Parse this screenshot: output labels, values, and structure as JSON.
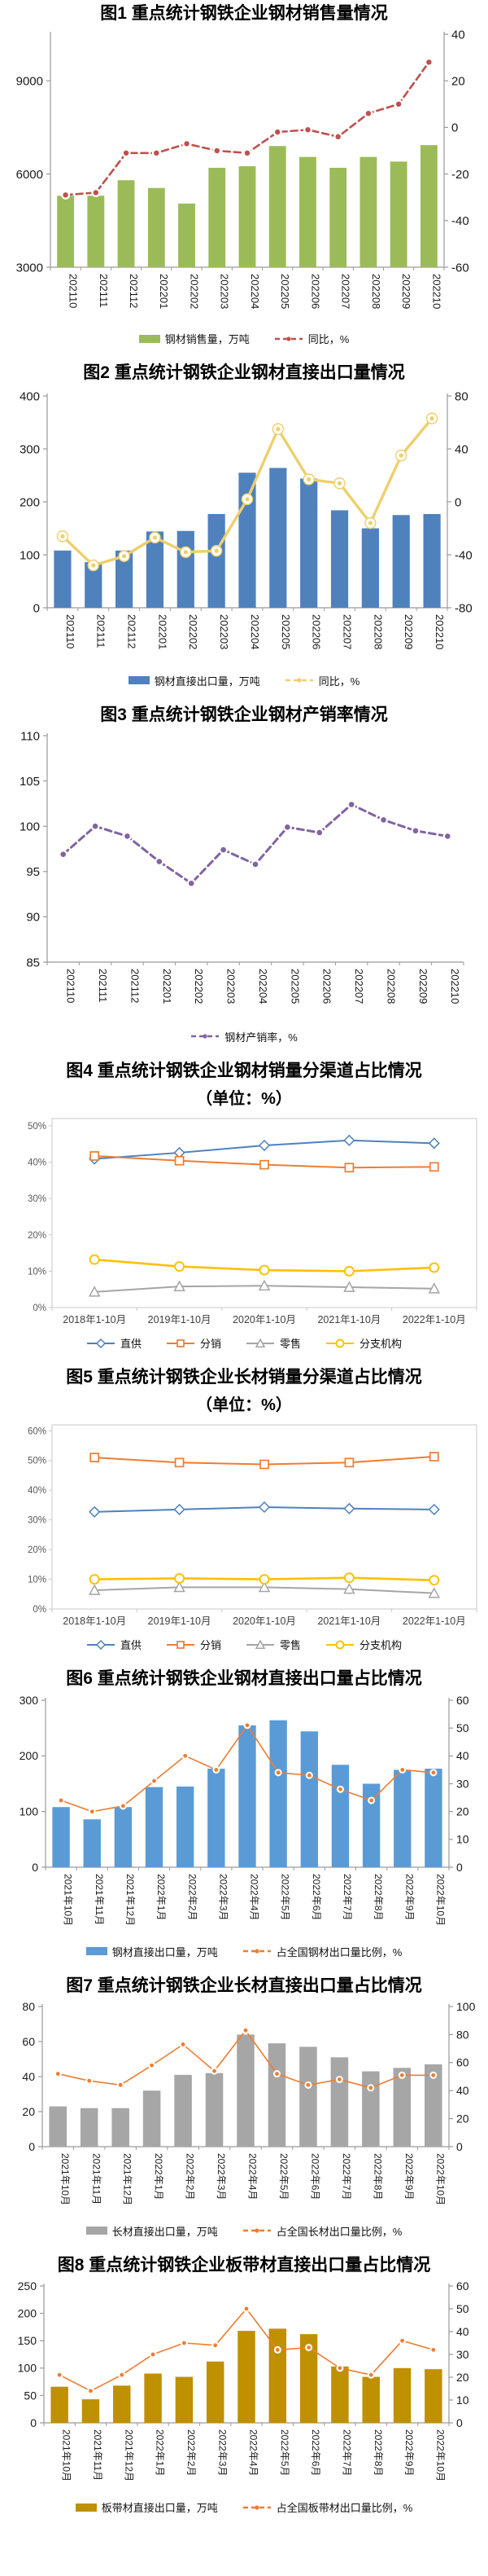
{
  "page": {
    "background": "#ffffff"
  },
  "chart_data": [
    {
      "id": "fig1",
      "type": "bar-line",
      "title": "图1 重点统计钢铁企业钢材销售量情况",
      "categories": [
        "202110",
        "202111",
        "202112",
        "202201",
        "202202",
        "202203",
        "202204",
        "202205",
        "202206",
        "202207",
        "202208",
        "202209",
        "202210"
      ],
      "series": [
        {
          "name": "钢材销售量，万吨",
          "type": "bar",
          "axis": "left",
          "color": "#9BBB59",
          "values": [
            5300,
            5300,
            5800,
            5550,
            5050,
            6200,
            6250,
            6900,
            6550,
            6200,
            6550,
            6400,
            6930
          ]
        },
        {
          "name": "同比，%",
          "type": "line",
          "axis": "right",
          "color": "#C0504D",
          "dashed": true,
          "width": 2.6,
          "mr": 5.5,
          "dr": 3.2,
          "values": [
            -29,
            -28,
            -11,
            -11,
            -7,
            -10,
            -11,
            -2,
            -1,
            -4,
            6,
            10,
            28
          ]
        }
      ],
      "left_axis": {
        "min": 3000,
        "max": 10500,
        "ticks": [
          9000,
          6000,
          3000
        ]
      },
      "right_axis": {
        "min": -60,
        "max": 40,
        "ticks": [
          40,
          20,
          0,
          -20,
          -40,
          -60
        ]
      },
      "legend_position": "bottom"
    },
    {
      "id": "fig2",
      "type": "bar-line",
      "title": "图2 重点统计钢铁企业钢材直接出口量情况",
      "categories": [
        "202110",
        "202111",
        "202112",
        "202201",
        "202202",
        "202203",
        "202204",
        "202205",
        "202206",
        "202207",
        "202208",
        "202209",
        "202210"
      ],
      "series": [
        {
          "name": "钢材直接出口量，万吨",
          "type": "bar",
          "axis": "left",
          "color": "#4F81BD",
          "values": [
            108,
            86,
            108,
            144,
            145,
            177,
            255,
            264,
            244,
            184,
            150,
            175,
            177
          ]
        },
        {
          "name": "同比，%",
          "type": "line",
          "axis": "right",
          "color": "#EECF6B",
          "dashed": false,
          "width": 3.4,
          "mr": 6.5,
          "dr": 2.6,
          "ring": true,
          "values": [
            -26,
            -48,
            -41,
            -27,
            -38,
            -37,
            2,
            55,
            17,
            14,
            -16,
            35,
            63
          ]
        }
      ],
      "left_axis": {
        "min": 0,
        "max": 400,
        "ticks": [
          400,
          300,
          200,
          100,
          0
        ]
      },
      "right_axis": {
        "min": -80,
        "max": 80,
        "ticks": [
          80,
          40,
          0,
          -40,
          -80
        ]
      },
      "legend_position": "bottom"
    },
    {
      "id": "fig3",
      "type": "line",
      "title": "图3 重点统计钢铁企业钢材产销率情况",
      "categories": [
        "202110",
        "202111",
        "202112",
        "202201",
        "202202",
        "202203",
        "202204",
        "202205",
        "202206",
        "202207",
        "202208",
        "202209",
        "202210"
      ],
      "series": [
        {
          "name": "钢材产销率，%",
          "type": "line",
          "axis": "left",
          "color": "#8064A2",
          "dashed": true,
          "width": 3,
          "mr": 5.5,
          "dr": 3.3,
          "values": [
            96.9,
            100.0,
            98.9,
            96.1,
            93.7,
            97.4,
            95.8,
            99.9,
            99.3,
            102.4,
            100.7,
            99.5,
            98.9
          ]
        }
      ],
      "left_axis": {
        "min": 85,
        "max": 110,
        "ticks": [
          110,
          105,
          100,
          95,
          90,
          85
        ]
      },
      "legend_position": "bottom"
    },
    {
      "id": "fig4",
      "type": "line-percent",
      "title": "图4 重点统计钢铁企业钢材销量分渠道占比情况",
      "subtitle": "（单位：%）",
      "categories": [
        "2018年1-10月",
        "2019年1-10月",
        "2020年1-10月",
        "2021年1-10月",
        "2022年1-10月"
      ],
      "series": [
        {
          "name": "直供",
          "type": "line",
          "color": "#4E81BD",
          "marker": "diamond",
          "width": 2,
          "values": [
            40.9,
            42.6,
            44.6,
            46.0,
            45.2
          ]
        },
        {
          "name": "分销",
          "type": "line",
          "color": "#ED7D31",
          "marker": "square",
          "width": 2,
          "values": [
            41.7,
            40.4,
            39.3,
            38.5,
            38.7
          ]
        },
        {
          "name": "零售",
          "type": "line",
          "color": "#A5A5A5",
          "marker": "triangle",
          "width": 2,
          "values": [
            4.3,
            5.8,
            6.0,
            5.6,
            5.2
          ]
        },
        {
          "name": "分支机构",
          "type": "line",
          "color": "#FFC000",
          "marker": "circle",
          "width": 2.6,
          "values": [
            13.2,
            11.3,
            10.3,
            10.0,
            11.0
          ]
        }
      ],
      "left_axis": {
        "min": 0,
        "max": 52,
        "ticks": [
          50,
          40,
          30,
          20,
          10,
          0
        ],
        "suffix": "%"
      },
      "legend_position": "bottom"
    },
    {
      "id": "fig5",
      "type": "line-percent",
      "title": "图5 重点统计钢铁企业长材销量分渠道占比情况",
      "subtitle": "（单位：%）",
      "categories": [
        "2018年1-10月",
        "2019年1-10月",
        "2020年1-10月",
        "2021年1-10月",
        "2022年1-10月"
      ],
      "series": [
        {
          "name": "直供",
          "type": "line",
          "color": "#4E81BD",
          "marker": "diamond",
          "width": 2,
          "values": [
            32.7,
            33.5,
            34.3,
            33.8,
            33.5
          ]
        },
        {
          "name": "分销",
          "type": "line",
          "color": "#ED7D31",
          "marker": "square",
          "width": 2,
          "values": [
            51.0,
            49.3,
            48.7,
            49.3,
            51.3
          ]
        },
        {
          "name": "零售",
          "type": "line",
          "color": "#A5A5A5",
          "marker": "triangle",
          "width": 2,
          "values": [
            6.3,
            7.3,
            7.3,
            6.7,
            5.3
          ]
        },
        {
          "name": "分支机构",
          "type": "line",
          "color": "#FFC000",
          "marker": "circle",
          "width": 2.6,
          "values": [
            10.0,
            10.3,
            10.0,
            10.5,
            9.7
          ]
        }
      ],
      "left_axis": {
        "min": 0,
        "max": 62,
        "ticks": [
          60,
          50,
          40,
          30,
          20,
          10,
          0
        ],
        "suffix": "%"
      },
      "legend_position": "bottom"
    },
    {
      "id": "fig6",
      "type": "bar-line",
      "title": "图6 重点统计钢铁企业钢材直接出口量占比情况",
      "categories": [
        "2021年10月",
        "2021年11月",
        "2021年12月",
        "2022年1月",
        "2022年2月",
        "2022年3月",
        "2022年4月",
        "2022年5月",
        "2022年6月",
        "2022年7月",
        "2022年8月",
        "2022年9月",
        "2022年10月"
      ],
      "series": [
        {
          "name": "钢材直接出口量，万吨",
          "type": "bar",
          "axis": "left",
          "color": "#5B9BD5",
          "values": [
            108,
            86,
            108,
            144,
            145,
            177,
            255,
            264,
            244,
            184,
            150,
            175,
            177
          ]
        },
        {
          "name": "占全国钢材出口量比例，%",
          "type": "line",
          "axis": "right",
          "color": "#ED7D31",
          "dashed": false,
          "width": 1.6,
          "mr": 4.5,
          "dr": 2.4,
          "values": [
            24,
            20,
            22,
            31,
            40,
            35,
            51,
            34,
            33,
            28,
            24,
            35,
            34
          ]
        }
      ],
      "left_axis": {
        "min": 0,
        "max": 300,
        "ticks": [
          300,
          200,
          100,
          0
        ]
      },
      "right_axis": {
        "min": 0,
        "max": 60,
        "ticks": [
          60,
          50,
          40,
          30,
          20,
          10,
          0
        ]
      },
      "legend_position": "bottom"
    },
    {
      "id": "fig7",
      "type": "bar-line",
      "title": "图7 重点统计钢铁企业长材直接出口量占比情况",
      "categories": [
        "2021年10月",
        "2021年11月",
        "2021年12月",
        "2022年1月",
        "2022年2月",
        "2022年3月",
        "2022年4月",
        "2022年5月",
        "2022年6月",
        "2022年7月",
        "2022年8月",
        "2022年9月",
        "2022年10月"
      ],
      "series": [
        {
          "name": "长材直接出口量，万吨",
          "type": "bar",
          "axis": "left",
          "color": "#A6A6A6",
          "values": [
            23,
            22,
            22,
            32,
            41,
            42,
            64,
            59,
            57,
            51,
            43,
            45,
            47
          ]
        },
        {
          "name": "占全国长材出口量比例，%",
          "type": "line",
          "axis": "right",
          "color": "#ED7D31",
          "dashed": false,
          "width": 1.6,
          "mr": 4.5,
          "dr": 2.4,
          "values": [
            52,
            47,
            44,
            58,
            73,
            54,
            83,
            52,
            44,
            48,
            42,
            51,
            51
          ]
        }
      ],
      "left_axis": {
        "min": 0,
        "max": 80,
        "ticks": [
          80,
          60,
          40,
          20,
          0
        ]
      },
      "right_axis": {
        "min": 0,
        "max": 100,
        "ticks": [
          100,
          80,
          60,
          40,
          20,
          0
        ]
      },
      "legend_position": "bottom"
    },
    {
      "id": "fig8",
      "type": "bar-line",
      "title": "图8 重点统计钢铁企业板带材直接出口量占比情况",
      "categories": [
        "2021年10月",
        "2021年11月",
        "2021年12月",
        "2022年1月",
        "2022年2月",
        "2022年3月",
        "2022年4月",
        "2022年5月",
        "2022年6月",
        "2022年7月",
        "2022年8月",
        "2022年9月",
        "2022年10月"
      ],
      "series": [
        {
          "name": "板带材直接出口量，万吨",
          "type": "bar",
          "axis": "left",
          "color": "#BF9000",
          "values": [
            66,
            43,
            68,
            90,
            84,
            112,
            168,
            172,
            162,
            103,
            84,
            100,
            98
          ]
        },
        {
          "name": "占全国板带材出口量比例，%",
          "type": "line",
          "axis": "right",
          "color": "#ED7D31",
          "dashed": false,
          "width": 1.6,
          "mr": 4.5,
          "dr": 2.4,
          "values": [
            21,
            14,
            21,
            30,
            35,
            34,
            50,
            32,
            33,
            24,
            21,
            36,
            32
          ]
        }
      ],
      "left_axis": {
        "min": 0,
        "max": 250,
        "ticks": [
          250,
          200,
          150,
          100,
          50,
          0
        ]
      },
      "right_axis": {
        "min": 0,
        "max": 60,
        "ticks": [
          60,
          50,
          40,
          30,
          20,
          10,
          0
        ]
      },
      "legend_position": "bottom"
    }
  ]
}
